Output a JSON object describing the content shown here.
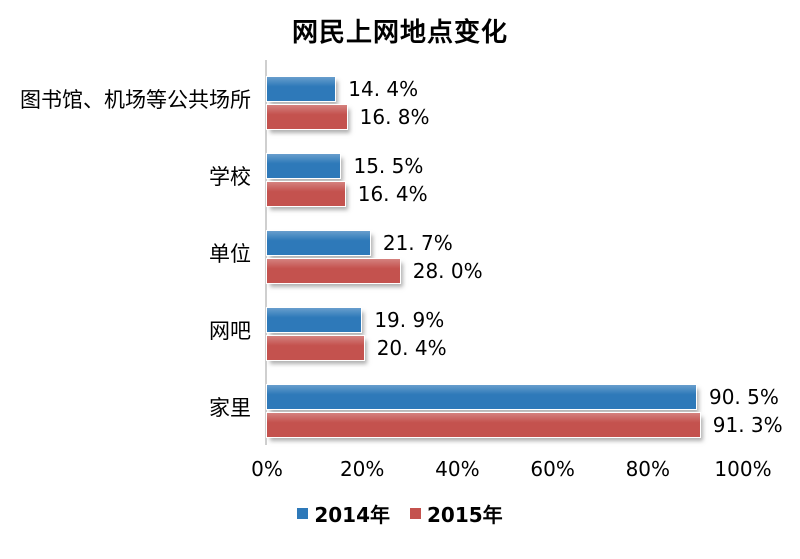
{
  "colors": {
    "series1_blue": "#2E79B9",
    "series2_red": "#C4524E",
    "axis_line": "#CFCFCF",
    "text": "#000000",
    "background": "#FFFFFF"
  },
  "chart_data": {
    "type": "bar",
    "orientation": "horizontal",
    "title": "网民上网地点变化",
    "categories": [
      "图书馆、机场等公共场所",
      "学校",
      "单位",
      "网吧",
      "家里"
    ],
    "series": [
      {
        "name": "2014年",
        "color": "#2E79B9",
        "values": [
          14.4,
          15.5,
          21.7,
          19.9,
          90.5
        ],
        "labels": [
          "14. 4%",
          "15. 5%",
          "21. 7%",
          "19. 9%",
          "90. 5%"
        ]
      },
      {
        "name": "2015年",
        "color": "#C4524E",
        "values": [
          16.8,
          16.4,
          28.0,
          20.4,
          91.3
        ],
        "labels": [
          "16. 8%",
          "16. 4%",
          "28. 0%",
          "20. 4%",
          "91. 3%"
        ]
      }
    ],
    "x_ticks": [
      "0%",
      "20%",
      "40%",
      "60%",
      "80%",
      "100%"
    ],
    "xlim": [
      0,
      100
    ],
    "grid": false,
    "value_labels": true,
    "legend_position": "bottom"
  }
}
